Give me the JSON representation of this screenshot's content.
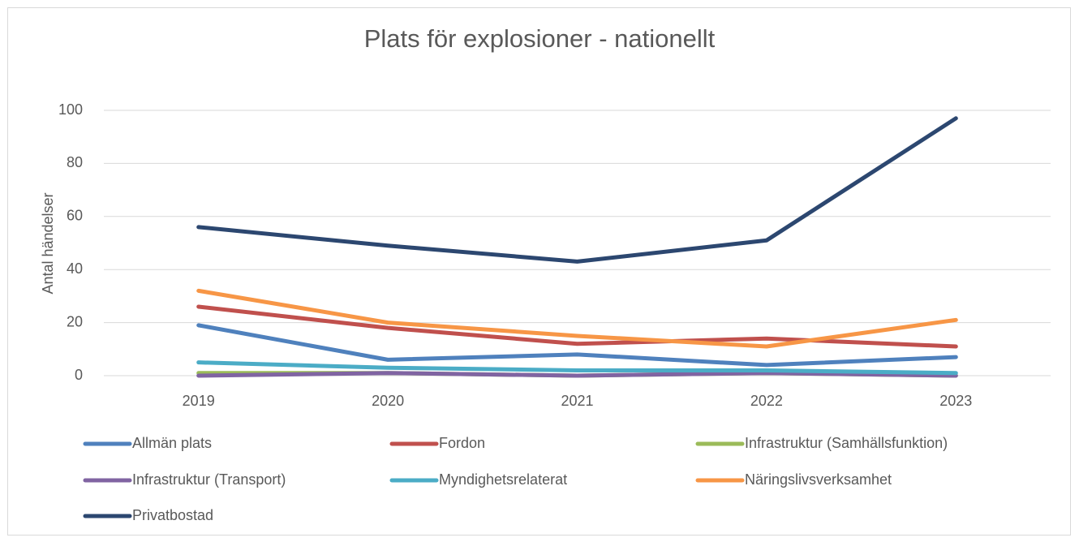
{
  "chart_data": {
    "type": "line",
    "title": "Plats för explosioner - nationellt",
    "y_label": "Antal händelser",
    "categories": [
      "2019",
      "2020",
      "2021",
      "2022",
      "2023"
    ],
    "ylim": [
      0,
      100
    ],
    "yticks": [
      0,
      20,
      40,
      60,
      80,
      100
    ],
    "grid": true,
    "legend": "bottom",
    "series": [
      {
        "name": "Allmän plats",
        "color": "#4f81bd",
        "values": [
          19,
          6,
          8,
          4,
          7
        ]
      },
      {
        "name": "Fordon",
        "color": "#c0504d",
        "values": [
          26,
          18,
          12,
          14,
          11
        ]
      },
      {
        "name": "Infrastruktur (Samhällsfunktion)",
        "color": "#9bbb59",
        "values": [
          1,
          1,
          0,
          1,
          0
        ]
      },
      {
        "name": "Infrastruktur (Transport)",
        "color": "#8064a2",
        "values": [
          0,
          1,
          0,
          1,
          0
        ]
      },
      {
        "name": "Myndighetsrelaterat",
        "color": "#4bacc6",
        "values": [
          5,
          3,
          2,
          2,
          1
        ]
      },
      {
        "name": "Näringslivsverksamhet",
        "color": "#f79646",
        "values": [
          32,
          20,
          15,
          11,
          21
        ]
      },
      {
        "name": "Privatbostad",
        "color": "#2c4770",
        "values": [
          56,
          49,
          43,
          51,
          97
        ]
      }
    ]
  }
}
